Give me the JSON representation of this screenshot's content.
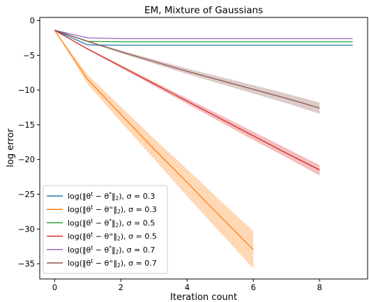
{
  "chart_data": {
    "type": "line",
    "title": "EM, Mixture of Gaussians",
    "xlabel": "Iteration count",
    "ylabel": "log error",
    "xlim": [
      -0.45,
      9.45
    ],
    "ylim": [
      -37.2,
      0.45
    ],
    "xticks": [
      0,
      2,
      4,
      6,
      8
    ],
    "yticks": [
      0,
      -5,
      -10,
      -15,
      -20,
      -25,
      -30,
      -35
    ],
    "grid": false,
    "legend_position": "bottom-left",
    "series": [
      {
        "name": "log(‖θ<sup>t</sup> − θ<sup>*</sup>‖<sub>2</sub>), σ = 0.3",
        "color": "#1f77b4",
        "x": [
          0,
          1,
          2,
          3,
          4,
          5,
          6,
          7,
          8,
          9
        ],
        "y": [
          -1.4,
          -3.5,
          -3.55,
          -3.55,
          -3.55,
          -3.55,
          -3.55,
          -3.55,
          -3.55,
          -3.55
        ]
      },
      {
        "name": "log(‖θ<sup>t</sup> − θ<sup>∞</sup>‖<sub>2</sub>), σ = 0.3",
        "color": "#ff7f0e",
        "x": [
          0,
          1,
          2,
          3,
          4,
          5,
          6
        ],
        "y": [
          -1.4,
          -8.5,
          -13.5,
          -18.5,
          -23.3,
          -28.2,
          -33.0
        ],
        "band_low": [
          -1.4,
          -9.2,
          -14.6,
          -19.9,
          -25.3,
          -30.5,
          -35.7
        ],
        "band_high": [
          -1.4,
          -7.8,
          -12.4,
          -17.0,
          -21.4,
          -25.9,
          -30.3
        ]
      },
      {
        "name": "log(‖θ<sup>t</sup> − θ<sup>*</sup>‖<sub>2</sub>), σ = 0.5",
        "color": "#2ca02c",
        "x": [
          0,
          1,
          2,
          3,
          4,
          5,
          6,
          7,
          8,
          9
        ],
        "y": [
          -1.4,
          -3.0,
          -3.05,
          -3.05,
          -3.05,
          -3.05,
          -3.05,
          -3.05,
          -3.05,
          -3.05
        ]
      },
      {
        "name": "log(‖θ<sup>t</sup> − θ<sup>∞</sup>‖<sub>2</sub>), σ = 0.5",
        "color": "#d62728",
        "x": [
          0,
          1,
          2,
          3,
          4,
          5,
          6,
          7,
          8
        ],
        "y": [
          -1.4,
          -4.1,
          -6.6,
          -9.1,
          -11.6,
          -14.1,
          -16.6,
          -19.1,
          -21.5
        ],
        "band_low": [
          -1.4,
          -4.2,
          -6.8,
          -9.4,
          -12.0,
          -14.6,
          -17.2,
          -19.7,
          -22.3
        ],
        "band_high": [
          -1.4,
          -4.0,
          -6.4,
          -8.8,
          -11.2,
          -13.6,
          -16.0,
          -18.4,
          -20.8
        ]
      },
      {
        "name": "log(‖θ<sup>t</sup> − θ<sup>*</sup>‖<sub>2</sub>), σ = 0.7",
        "color": "#9467bd",
        "x": [
          0,
          1,
          2,
          3,
          4,
          5,
          6,
          7,
          8,
          9
        ],
        "y": [
          -1.4,
          -2.5,
          -2.6,
          -2.6,
          -2.6,
          -2.6,
          -2.6,
          -2.6,
          -2.6,
          -2.6
        ]
      },
      {
        "name": "log(‖θ<sup>t</sup> − θ<sup>∞</sup>‖<sub>2</sub>), σ = 0.7",
        "color": "#8c564b",
        "x": [
          0,
          1,
          2,
          3,
          4,
          5,
          6,
          7,
          8
        ],
        "y": [
          -1.4,
          -3.0,
          -4.5,
          -5.9,
          -7.3,
          -8.6,
          -9.9,
          -11.2,
          -12.6
        ],
        "band_low": [
          -1.4,
          -3.1,
          -4.7,
          -6.2,
          -7.7,
          -9.1,
          -10.5,
          -11.9,
          -13.4
        ],
        "band_high": [
          -1.4,
          -2.9,
          -4.3,
          -5.6,
          -6.9,
          -8.1,
          -9.3,
          -10.5,
          -11.8
        ]
      }
    ]
  }
}
